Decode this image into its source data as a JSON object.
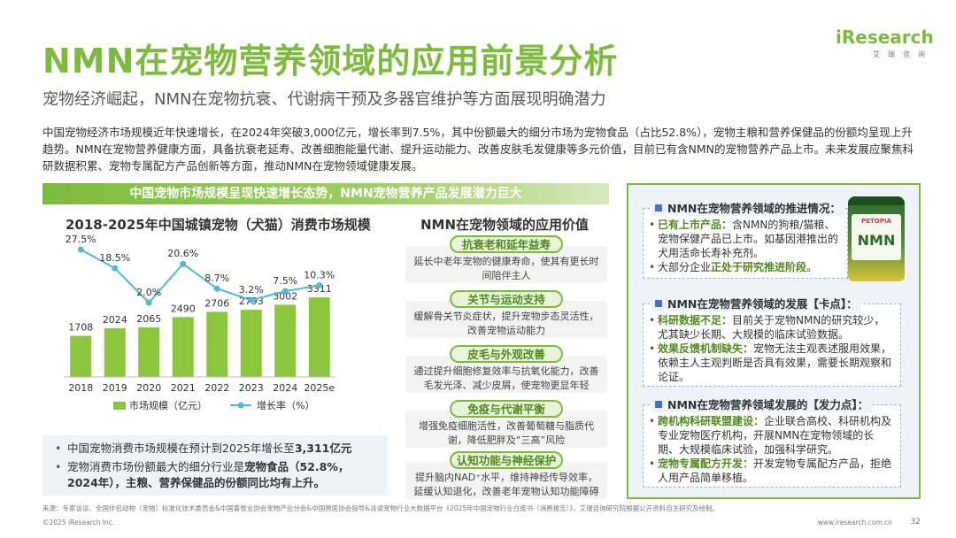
{
  "header": {
    "title": "NMN在宠物营养领域的应用前景分析",
    "subtitle": "宠物经济崛起，NMN在宠物抗衰、代谢病干预及多器官维护等方面展现明确潜力",
    "logo": "iResearch",
    "logo_sub": "艾瑞咨询"
  },
  "intro": "中国宠物经济市场规模近年快速增长，在2024年突破3,000亿元，增长率到7.5%，其中份额最大的细分市场为宠物食品（占比52.8%），宠物主粮和营养保健品的份额均呈现上升趋势。NMN在宠物营养健康方面，具备抗衰老延寿、改善细胞能量代谢、提升运动能力、改善皮肤毛发健康等多元价值，目前已有含NMN的宠物营养产品上市。未来发展应聚焦科研数据积累、宠物专属配方产品创新等方面，推动NMN在宠物领域健康发展。",
  "banner": "中国宠物市场规模呈现快速增长态势，NMN宠物营养产品发展潜力巨大",
  "chart_data": {
    "type": "bar",
    "title": "2018-2025年中国城镇宠物（犬猫）消费市场规模",
    "categories": [
      "2018",
      "2019",
      "2020",
      "2021",
      "2022",
      "2023",
      "2024",
      "2025e"
    ],
    "series": [
      {
        "name": "市场规模（亿元）",
        "type": "bar",
        "values": [
          1708,
          2024,
          2065,
          2490,
          2706,
          2793,
          3002,
          3311
        ]
      },
      {
        "name": "增长率（%）",
        "type": "line",
        "values": [
          27.5,
          18.5,
          2.0,
          20.6,
          8.7,
          3.2,
          7.5,
          10.3
        ]
      }
    ],
    "value_labels": [
      "1708",
      "2024",
      "2065",
      "2490",
      "2706",
      "2793",
      "3002",
      "3311"
    ],
    "rate_labels": [
      "27.5%",
      "18.5%",
      "2.0%",
      "20.6%",
      "8.7%",
      "3.2%",
      "7.5%",
      "10.3%"
    ],
    "legend_position": "bottom",
    "grid": false,
    "colors": {
      "bar": "#8cc63f",
      "line": "#4fb8d8"
    }
  },
  "chart_bullets": [
    {
      "text": "中国宠物消费市场规模在预计到2025年增长至",
      "bold": "3,311亿元",
      "tail": ""
    },
    {
      "text": "宠物消费市场份额最大的细分行业是",
      "bold": "宠物食品（52.8%，2024年），主粮、营养保健品的份额同比均有上升。",
      "tail": ""
    }
  ],
  "applications": {
    "title": "NMN在宠物领域的应用价值",
    "items": [
      {
        "label": "抗衰老和延年益寿",
        "desc": "延长中老年宠物的健康寿命，使其有更长时间陪伴主人"
      },
      {
        "label": "关节与运动支持",
        "desc": "缓解骨关节炎症状，提升宠物步态灵活性，改善宠物运动能力"
      },
      {
        "label": "皮毛与外观改善",
        "desc": "通过提升细胞修复效率与抗氧化能力，改善毛发光泽、减少皮屑，使宠物更显年轻"
      },
      {
        "label": "免疫与代谢平衡",
        "desc": "增强免疫细胞活性，改善葡萄糖与脂质代谢，降低肥胖及“三高”风险"
      },
      {
        "label": "认知功能与神经保护",
        "desc": "提升脑内NAD⁺水平，维持神经传导效率，延缓认知退化，改善老年宠物认知功能障碍"
      }
    ]
  },
  "right_panel": {
    "progress": {
      "heading": "NMN在宠物营养领域的推进情况：",
      "items": [
        {
          "hl": "已有上市产品：",
          "text": "含NMN的狗粮/猫粮、宠物保健产品已上市。如基因港推出的犬用活命长寿补充剂。"
        },
        {
          "hl": "",
          "pre": "大部分企业",
          "hl2": "正处于研究推进阶段",
          "text": "。"
        }
      ]
    },
    "bottleneck": {
      "heading": "NMN在宠物营养领域的发展【卡点】：",
      "items": [
        {
          "hl": "科研数据不足：",
          "text": "目前关于宠物NMN的研究较少，尤其缺少长期、大规模的临床试验数据。"
        },
        {
          "hl": "效果反馈机制缺失：",
          "text": "宠物无法主观表述服用效果，依赖主人主观判断是否具有效果，需要长期观察和论证。"
        }
      ]
    },
    "driver": {
      "heading": "NMN在宠物营养领域发展的【发力点】：",
      "items": [
        {
          "hl": "跨机构科研联盟建设：",
          "text": "企业联合高校、科研机构及专业宠物医疗机构，开展NMN在宠物领域的长期、大规模临床试验，加强科学研究。"
        },
        {
          "hl": "宠物专属配方开发：",
          "text": "开发宠物专属配方产品，拒绝人用产品简单移植。"
        }
      ]
    },
    "product": {
      "brand": "PETOPIA",
      "name": "NMN"
    }
  },
  "footer": {
    "source": "来源：专家访谈、全国伴侣动物（宠物）标准化技术委员会&中国畜牧业协会宠物产业分会&中国兽医协会指导&派读宠物行业大数据平台《2025年中国宠物行业白皮书（消费报告）》，艾瑞咨询研究院根据公开资料自主研究及绘制。",
    "copyright": "©2025 iResearch Inc.",
    "site": "www.iresearch.com.cn",
    "page": "32"
  }
}
